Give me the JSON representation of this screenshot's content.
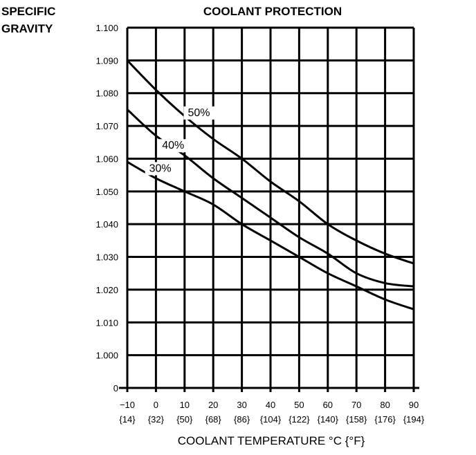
{
  "chart_data": {
    "type": "line",
    "title": "COOLANT PROTECTION",
    "ylabel_lines": [
      "SPECIFIC",
      "GRAVITY"
    ],
    "xlabel": "COOLANT TEMPERATURE °C {°F}",
    "x": [
      -10,
      0,
      10,
      20,
      30,
      40,
      50,
      60,
      70,
      80,
      90
    ],
    "x_tick_labels": [
      "−10",
      "0",
      "10",
      "20",
      "30",
      "40",
      "50",
      "60",
      "70",
      "80",
      "90"
    ],
    "x_tick_labels_f": [
      "{14}",
      "{32}",
      "{50}",
      "{68}",
      "{86}",
      "{104}",
      "{122}",
      "{140}",
      "{158}",
      "{176}",
      "{194}"
    ],
    "xlim": [
      -10,
      90
    ],
    "ylim": [
      0.99,
      1.1
    ],
    "y_ticks": [
      0.99,
      1.0,
      1.01,
      1.02,
      1.03,
      1.04,
      1.05,
      1.06,
      1.07,
      1.08,
      1.09,
      1.1
    ],
    "y_tick_labels": [
      "0",
      "1.000",
      "1.010",
      "1.020",
      "1.030",
      "1.040",
      "1.050",
      "1.060",
      "1.070",
      "1.080",
      "1.090",
      "1.100"
    ],
    "grid": true,
    "series": [
      {
        "name": "50%",
        "values": [
          1.09,
          1.081,
          1.073,
          1.066,
          1.06,
          1.053,
          1.047,
          1.04,
          1.035,
          1.031,
          1.028
        ],
        "label_at": [
          15,
          1.073
        ]
      },
      {
        "name": "40%",
        "values": [
          1.075,
          1.067,
          1.061,
          1.054,
          1.048,
          1.042,
          1.036,
          1.031,
          1.025,
          1.022,
          1.021
        ],
        "label_at": [
          6,
          1.063
        ]
      },
      {
        "name": "30%",
        "values": [
          1.059,
          1.054,
          1.05,
          1.046,
          1.04,
          1.035,
          1.03,
          1.025,
          1.021,
          1.017,
          1.014
        ],
        "label_at": [
          1.5,
          1.056
        ]
      }
    ]
  }
}
